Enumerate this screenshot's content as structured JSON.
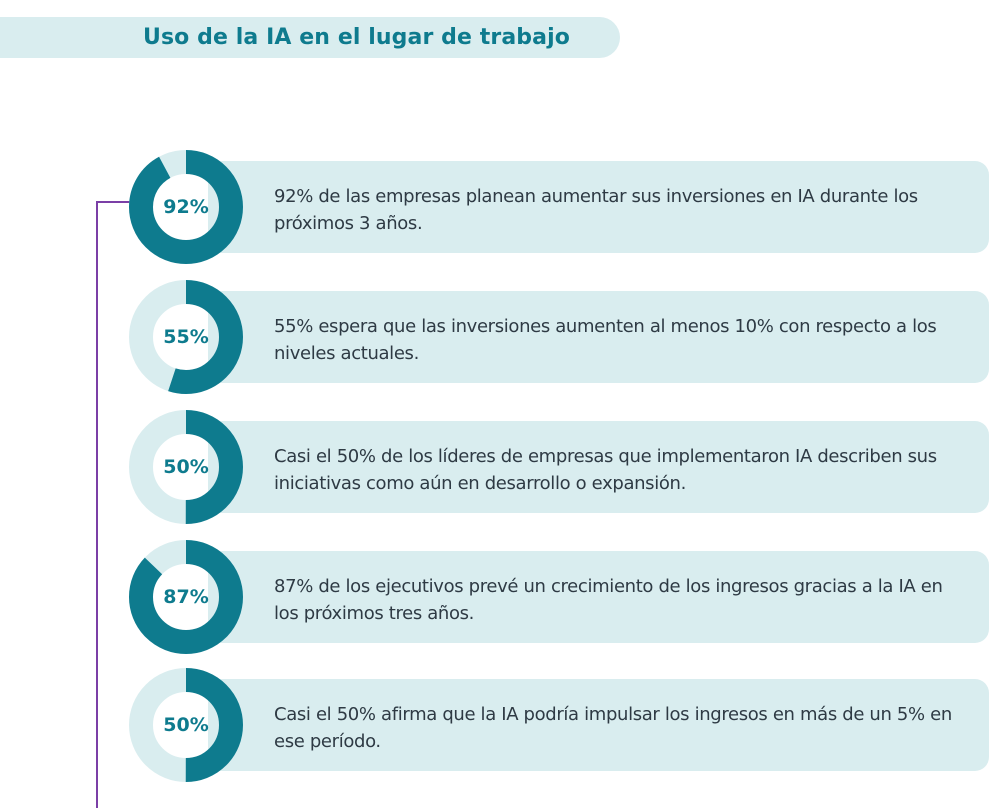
{
  "page": {
    "title": "Uso de la IA en el lugar de trabajo"
  },
  "colors": {
    "accent": "#0e7b8e",
    "card_background": "#d9edef",
    "donut_track": "#d9edef",
    "text": "#2e3a44",
    "connector": "#7b3fa6"
  },
  "stats": [
    {
      "label": "92%",
      "value": 92,
      "text": "92% de las empresas planean aumentar sus inversiones en IA durante los próximos 3 años."
    },
    {
      "label": "55%",
      "value": 55,
      "text": "55% espera que las inversiones aumenten al menos 10% con respecto a los niveles actuales."
    },
    {
      "label": "50%",
      "value": 50,
      "text": "Casi el 50% de los líderes de empresas que implementaron IA describen sus iniciativas como aún en desarrollo o expansión."
    },
    {
      "label": "87%",
      "value": 87,
      "text": "87% de los ejecutivos prevé un crecimiento de los ingresos gracias a la IA en los próximos tres años."
    },
    {
      "label": "50%",
      "value": 50,
      "text": "Casi el 50% afirma que la IA podría impulsar los ingresos en más de un 5% en ese período."
    }
  ]
}
